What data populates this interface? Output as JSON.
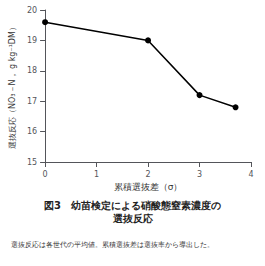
{
  "chart_data": {
    "type": "line",
    "title": "図3　幼苗検定による硝酸態窒素濃度の\n選抜反応",
    "x_label": "累積選抜差（σ）",
    "y_label": "選抜反応（NO₃－N， g kg⁻¹DM）",
    "annotations": [
      "選抜反応は各世代の平均値。累積選抜差は選抜率から導出した。"
    ],
    "x": [
      0,
      2,
      3,
      3.7
    ],
    "values": [
      19.6,
      19.0,
      17.2,
      16.8
    ],
    "color": "#000000",
    "marker": "circle",
    "xlim": [
      0,
      4
    ],
    "ylim": [
      15,
      20
    ],
    "xticks": [
      0,
      1,
      2,
      3,
      4
    ],
    "yticks": [
      15,
      16,
      17,
      18,
      19,
      20
    ],
    "grid": false
  }
}
